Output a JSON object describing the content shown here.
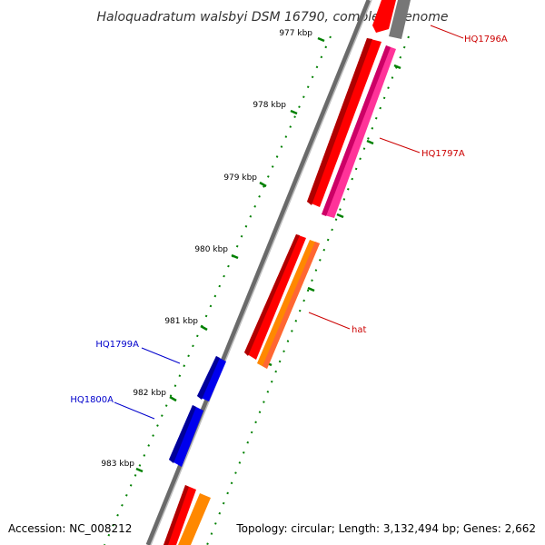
{
  "title": "Haloquadratum walsbyi DSM 16790, complete genome",
  "footer": {
    "accession": "Accession: NC_008212",
    "summary": "Topology: circular; Length: 3,132,494 bp; Genes: 2,662"
  },
  "ticks": [
    "977 kbp",
    "978 kbp",
    "979 kbp",
    "980 kbp",
    "981 kbp",
    "982 kbp",
    "983 kbp"
  ],
  "gene_labels": [
    {
      "text": "HQ1796A",
      "color": "#cc0000"
    },
    {
      "text": "HQ1797A",
      "color": "#cc0000"
    },
    {
      "text": "hat",
      "color": "#cc0000"
    },
    {
      "text": "HQ1799A",
      "color": "#0000cc"
    },
    {
      "text": "HQ1800A",
      "color": "#0000cc"
    }
  ],
  "colors": {
    "backbone": "#8a8a8a",
    "cds_forward": "#ff0000",
    "cds_reverse": "#0000ee",
    "rna_pink": "#ff3399",
    "rna_orange": "#ff8800",
    "rna_grey": "#777777",
    "tick_green": "#008000"
  }
}
